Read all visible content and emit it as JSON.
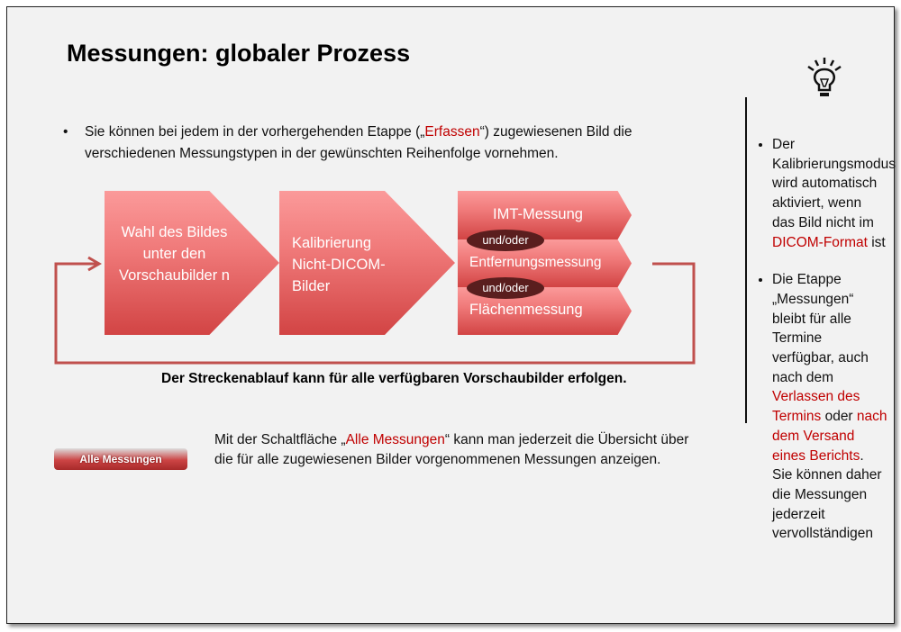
{
  "title": "Messungen: globaler Prozess",
  "intro": {
    "pre": "Sie können bei jedem in der vorhergehenden Etappe („",
    "hl": "Erfassen",
    "post": "“) zugewiesenen Bild die verschiedenen Messungstypen in der gewünschten Reihenfolge vornehmen."
  },
  "flow": {
    "step1": "Wahl des Bildes unter den Vorschaubilder n",
    "step2": "Kalibrierung Nicht-DICOM-Bilder",
    "measure": [
      "IMT-Messung",
      "Entfernungsmessung",
      "Flächenmessung"
    ],
    "connector": "und/oder",
    "loop_note": "Der Streckenablauf kann für alle verfügbaren Vorschaubilder erfolgen."
  },
  "button": {
    "label": "Alle Messungen"
  },
  "button_desc": {
    "pre": "Mit der Schaltfläche „",
    "hl": "Alle Messungen",
    "post": "“ kann man jederzeit die Übersicht über die für alle zugewiesenen Bilder vorgenommenen Messungen anzeigen."
  },
  "sidebar": {
    "icon": "lightbulb-icon",
    "tip1": {
      "pre": "Der Kalibrierungsmodus wird automatisch aktiviert, wenn das Bild nicht im ",
      "hl": "DICOM-Format",
      "post": " ist"
    },
    "tip2": {
      "pre": "Die Etappe „Messungen“ bleibt für alle Termine verfügbar, auch nach dem ",
      "hl1": "Verlassen des Termins",
      "mid": " oder ",
      "hl2": "nach dem Versand eines Berichts",
      "post": ". Sie können daher die Messungen jederzeit vervollständigen"
    }
  },
  "colors": {
    "accent": "#c00000",
    "shape": "#e06060",
    "pill": "#5a1e1e"
  }
}
